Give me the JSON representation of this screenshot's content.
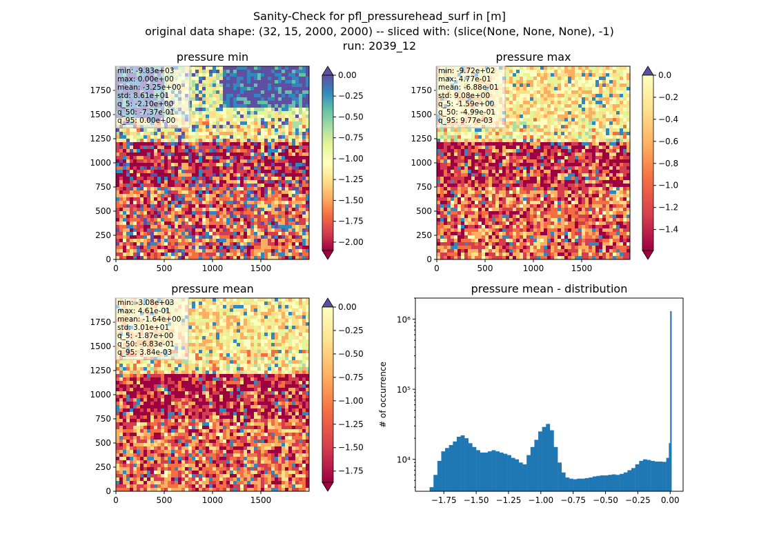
{
  "figure": {
    "suptitle_lines": [
      "Sanity-Check for pfl_pressurehead_surf in [m]",
      "original data shape: (32, 15, 2000, 2000) -- sliced with: (slice(None, None, None), -1)",
      "run: 2039_12"
    ]
  },
  "maps": [
    {
      "id": "min",
      "title": "pressure min",
      "stats": [
        "min: -9.83e+03",
        "max: 0.00e+00",
        "mean: -3.25e+00",
        "std: 8.61e+01",
        "q_5: -2.10e+00",
        "q_50: -7.37e-01",
        "q_95: 0.00e+00"
      ],
      "xticks": [
        "0",
        "500",
        "1000",
        "1500"
      ],
      "yticks": [
        "0",
        "250",
        "500",
        "750",
        "1000",
        "1250",
        "1500",
        "1750"
      ],
      "colorbar": {
        "ticks": [
          "0.00",
          "−0.25",
          "−0.50",
          "−0.75",
          "−1.00",
          "−1.25",
          "−1.50",
          "−1.75",
          "−2.00"
        ],
        "extend": "both",
        "range": [
          -2.1,
          0.0
        ]
      }
    },
    {
      "id": "max",
      "title": "pressure max",
      "stats": [
        "min: -9.72e+02",
        "max: 4.77e-01",
        "mean: -6.88e-01",
        "std: 9.08e+00",
        "q_5: -1.59e+00",
        "q_50: -4.99e-01",
        "q_95: 9.77e-03"
      ],
      "xticks": [
        "0",
        "500",
        "1000",
        "1500"
      ],
      "yticks": [
        "0",
        "250",
        "500",
        "750",
        "1000",
        "1250",
        "1500",
        "1750"
      ],
      "colorbar": {
        "ticks": [
          "0.0",
          "−0.2",
          "−0.4",
          "−0.6",
          "−0.8",
          "−1.0",
          "−1.2",
          "−1.4"
        ],
        "extend": "both",
        "range": [
          -1.59,
          0.0
        ]
      }
    },
    {
      "id": "mean",
      "title": "pressure mean",
      "stats": [
        "min: -3.08e+03",
        "max: 4.61e-01",
        "mean: -1.64e+00",
        "std: 3.01e+01",
        "q_5: -1.87e+00",
        "q_50: -6.83e-01",
        "q_95: 3.84e-03"
      ],
      "xticks": [
        "0",
        "500",
        "1000",
        "1500"
      ],
      "yticks": [
        "0",
        "250",
        "500",
        "750",
        "1000",
        "1250",
        "1500",
        "1750"
      ],
      "colorbar": {
        "ticks": [
          "0.00",
          "−0.25",
          "−0.50",
          "−0.75",
          "−1.00",
          "−1.25",
          "−1.50",
          "−1.75"
        ],
        "extend": "both",
        "range": [
          -1.87,
          0.0
        ]
      }
    }
  ],
  "histogram": {
    "title": "pressure mean - distribution",
    "ylabel": "# of occurrence",
    "xticks": [
      "−1.75",
      "−1.50",
      "−1.25",
      "−1.00",
      "−0.75",
      "−0.50",
      "−0.25",
      "0.00"
    ],
    "yticks": [
      "10⁴",
      "10⁵",
      "10⁶"
    ],
    "bar_color": "#1f77b4"
  },
  "chart_data": [
    {
      "type": "heatmap",
      "title": "pressure min",
      "x_range": [
        0,
        2000
      ],
      "y_range": [
        0,
        2000
      ],
      "colormap": "Spectral",
      "color_range": [
        -2.1,
        0.0
      ],
      "stats": {
        "min": -9830,
        "max": 0.0,
        "mean": -3.25,
        "std": 86.1,
        "q_5": -2.1,
        "q_50": -0.737,
        "q_95": 0.0
      }
    },
    {
      "type": "heatmap",
      "title": "pressure max",
      "x_range": [
        0,
        2000
      ],
      "y_range": [
        0,
        2000
      ],
      "colormap": "Spectral",
      "color_range": [
        -1.59,
        0.0
      ],
      "stats": {
        "min": -972,
        "max": 0.477,
        "mean": -0.688,
        "std": 9.08,
        "q_5": -1.59,
        "q_50": -0.499,
        "q_95": 0.00977
      }
    },
    {
      "type": "heatmap",
      "title": "pressure mean",
      "x_range": [
        0,
        2000
      ],
      "y_range": [
        0,
        2000
      ],
      "colormap": "Spectral",
      "color_range": [
        -1.87,
        0.0
      ],
      "stats": {
        "min": -3080,
        "max": 0.461,
        "mean": -1.64,
        "std": 30.1,
        "q_5": -1.87,
        "q_50": -0.683,
        "q_95": 0.00384
      }
    },
    {
      "type": "bar",
      "title": "pressure mean - distribution",
      "xlabel": "",
      "ylabel": "# of occurrence",
      "y_scale": "log",
      "xlim": [
        -1.97,
        0.1
      ],
      "ylim": [
        3500,
        2000000
      ],
      "x": [
        -1.86,
        -1.83,
        -1.8,
        -1.77,
        -1.74,
        -1.71,
        -1.68,
        -1.65,
        -1.62,
        -1.59,
        -1.56,
        -1.53,
        -1.5,
        -1.47,
        -1.44,
        -1.41,
        -1.38,
        -1.35,
        -1.32,
        -1.29,
        -1.26,
        -1.23,
        -1.2,
        -1.17,
        -1.14,
        -1.11,
        -1.08,
        -1.05,
        -1.02,
        -0.99,
        -0.96,
        -0.93,
        -0.9,
        -0.87,
        -0.84,
        -0.81,
        -0.78,
        -0.75,
        -0.72,
        -0.69,
        -0.66,
        -0.63,
        -0.6,
        -0.57,
        -0.54,
        -0.51,
        -0.48,
        -0.45,
        -0.42,
        -0.39,
        -0.36,
        -0.33,
        -0.3,
        -0.27,
        -0.24,
        -0.21,
        -0.18,
        -0.15,
        -0.12,
        -0.09,
        -0.06,
        -0.03,
        -0.01,
        0.0
      ],
      "values": [
        4000,
        6000,
        9500,
        13000,
        14500,
        16000,
        18000,
        21000,
        22000,
        20000,
        17000,
        15000,
        13500,
        12500,
        12500,
        13000,
        13500,
        13000,
        12500,
        12000,
        11500,
        10500,
        10000,
        9000,
        8500,
        11500,
        15000,
        19000,
        25000,
        29000,
        32000,
        26000,
        15000,
        9000,
        6500,
        5500,
        5300,
        5200,
        5300,
        5300,
        5400,
        5500,
        5700,
        5800,
        5900,
        5900,
        6000,
        6100,
        6000,
        6200,
        6500,
        7000,
        7500,
        8500,
        9500,
        10000,
        9800,
        9500,
        9300,
        9300,
        9200,
        10500,
        17000,
        1300000
      ],
      "bin_width": 0.0105
    }
  ]
}
